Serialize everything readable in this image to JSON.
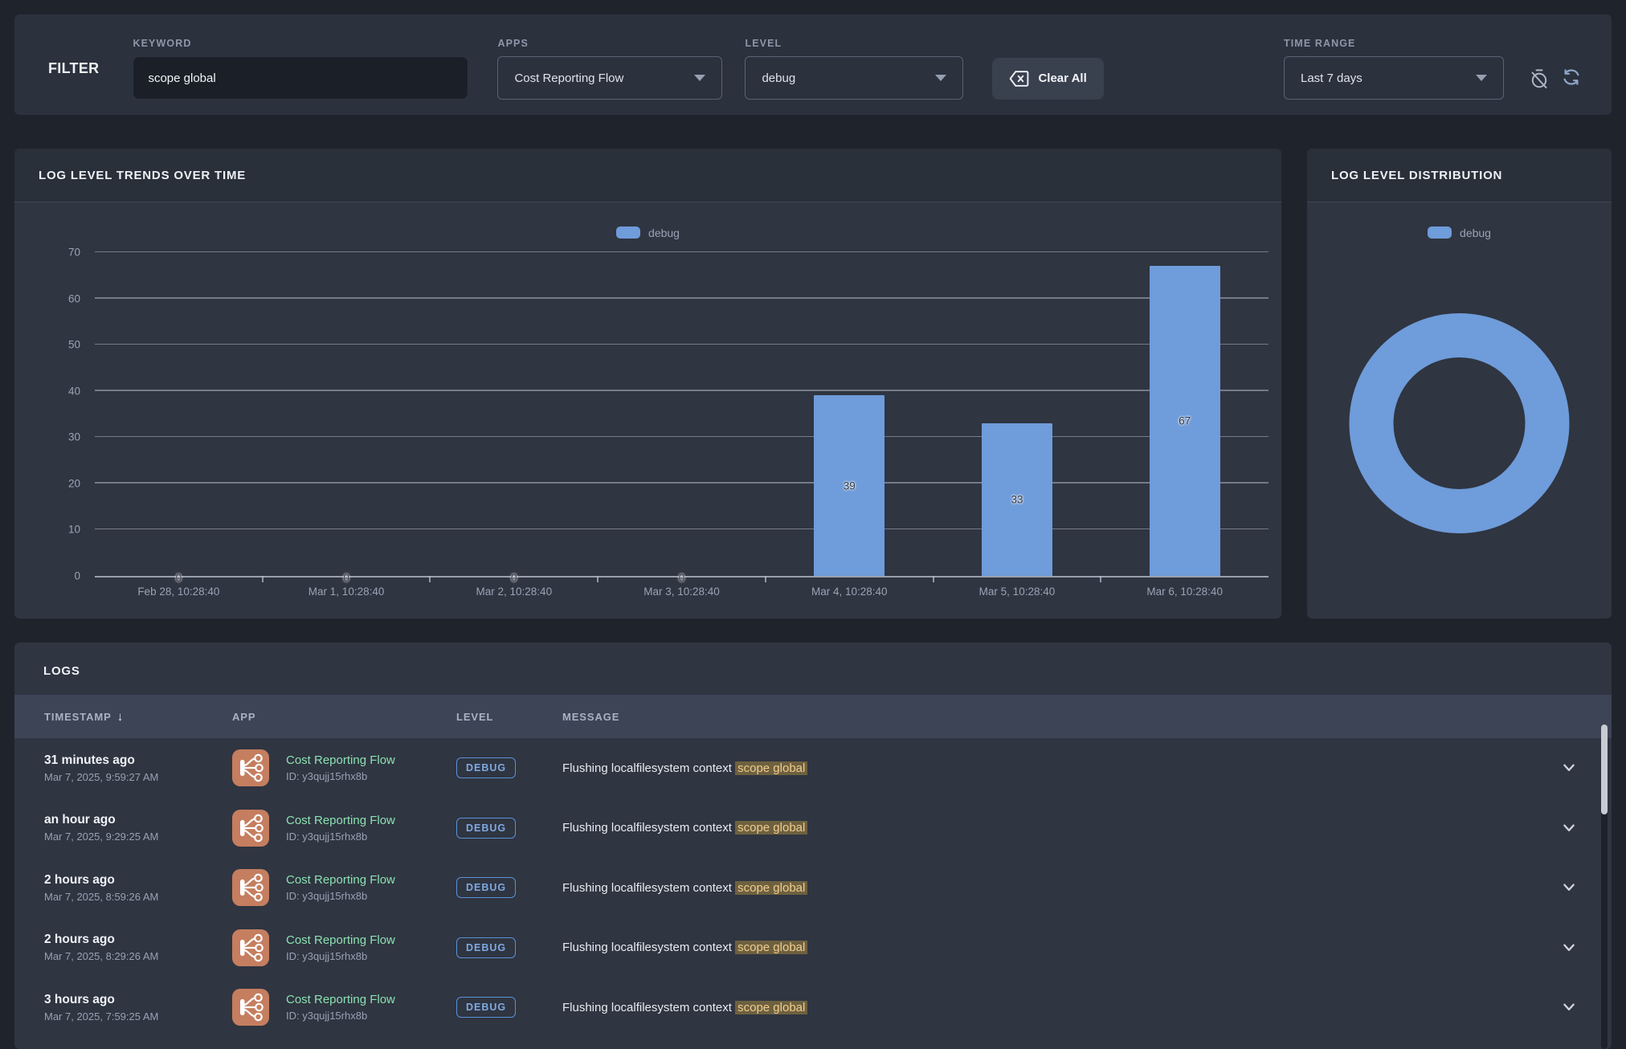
{
  "filter_bar": {
    "filter_label": "FILTER",
    "keyword_label": "KEYWORD",
    "keyword_value": "scope global",
    "apps_label": "APPS",
    "apps_value": "Cost Reporting Flow",
    "level_label": "LEVEL",
    "level_value": "debug",
    "clear_all_label": "Clear All",
    "time_range_label": "TIME RANGE",
    "time_range_value": "Last 7 days"
  },
  "trends_panel": {
    "title": "LOG LEVEL TRENDS OVER TIME"
  },
  "distribution_panel": {
    "title": "LOG LEVEL DISTRIBUTION"
  },
  "chart_data": [
    {
      "type": "bar",
      "title": "LOG LEVEL TRENDS OVER TIME",
      "categories": [
        "Feb 28, 10:28:40",
        "Mar 1, 10:28:40",
        "Mar 2, 10:28:40",
        "Mar 3, 10:28:40",
        "Mar 4, 10:28:40",
        "Mar 5, 10:28:40",
        "Mar 6, 10:28:40"
      ],
      "series": [
        {
          "name": "debug",
          "values": [
            0,
            0,
            0,
            0,
            39,
            33,
            67
          ],
          "color": "#6f9cda"
        }
      ],
      "xlabel": "",
      "ylabel": "",
      "ylim": [
        0,
        70
      ],
      "yticks": [
        0,
        10,
        20,
        30,
        40,
        50,
        60,
        70
      ],
      "grid": true,
      "legend_position": "top",
      "bar_value_labels": true
    },
    {
      "type": "pie",
      "title": "LOG LEVEL DISTRIBUTION",
      "labels": [
        "debug"
      ],
      "values": [
        100
      ],
      "donut": true,
      "colors": [
        "#6f9cda"
      ],
      "legend_position": "top"
    }
  ],
  "logs_panel": {
    "title": "LOGS",
    "columns": {
      "timestamp": "TIMESTAMP",
      "app": "APP",
      "level": "LEVEL",
      "message": "MESSAGE"
    },
    "sort": {
      "column": "TIMESTAMP",
      "direction": "desc"
    },
    "rows": [
      {
        "relative_time": "31 minutes ago",
        "timestamp": "Mar 7, 2025, 9:59:27 AM",
        "app": "Cost Reporting Flow",
        "app_id": "ID: y3qujj15rhx8b",
        "level": "DEBUG",
        "message": "Flushing localfilesystem context",
        "highlight": "scope global"
      },
      {
        "relative_time": "an hour ago",
        "timestamp": "Mar 7, 2025, 9:29:25 AM",
        "app": "Cost Reporting Flow",
        "app_id": "ID: y3qujj15rhx8b",
        "level": "DEBUG",
        "message": "Flushing localfilesystem context",
        "highlight": "scope global"
      },
      {
        "relative_time": "2 hours ago",
        "timestamp": "Mar 7, 2025, 8:59:26 AM",
        "app": "Cost Reporting Flow",
        "app_id": "ID: y3qujj15rhx8b",
        "level": "DEBUG",
        "message": "Flushing localfilesystem context",
        "highlight": "scope global"
      },
      {
        "relative_time": "2 hours ago",
        "timestamp": "Mar 7, 2025, 8:29:26 AM",
        "app": "Cost Reporting Flow",
        "app_id": "ID: y3qujj15rhx8b",
        "level": "DEBUG",
        "message": "Flushing localfilesystem context",
        "highlight": "scope global"
      },
      {
        "relative_time": "3 hours ago",
        "timestamp": "Mar 7, 2025, 7:59:25 AM",
        "app": "Cost Reporting Flow",
        "app_id": "ID: y3qujj15rhx8b",
        "level": "DEBUG",
        "message": "Flushing localfilesystem context",
        "highlight": "scope global"
      }
    ]
  },
  "colors": {
    "accent_blue": "#6f9cda",
    "badge_blue": "#7fa9e2",
    "app_icon_salmon": "#c57e5f",
    "app_link_green": "#8ce0b1",
    "highlight_bg": "#6e6140",
    "highlight_text": "#f1cc8e"
  }
}
